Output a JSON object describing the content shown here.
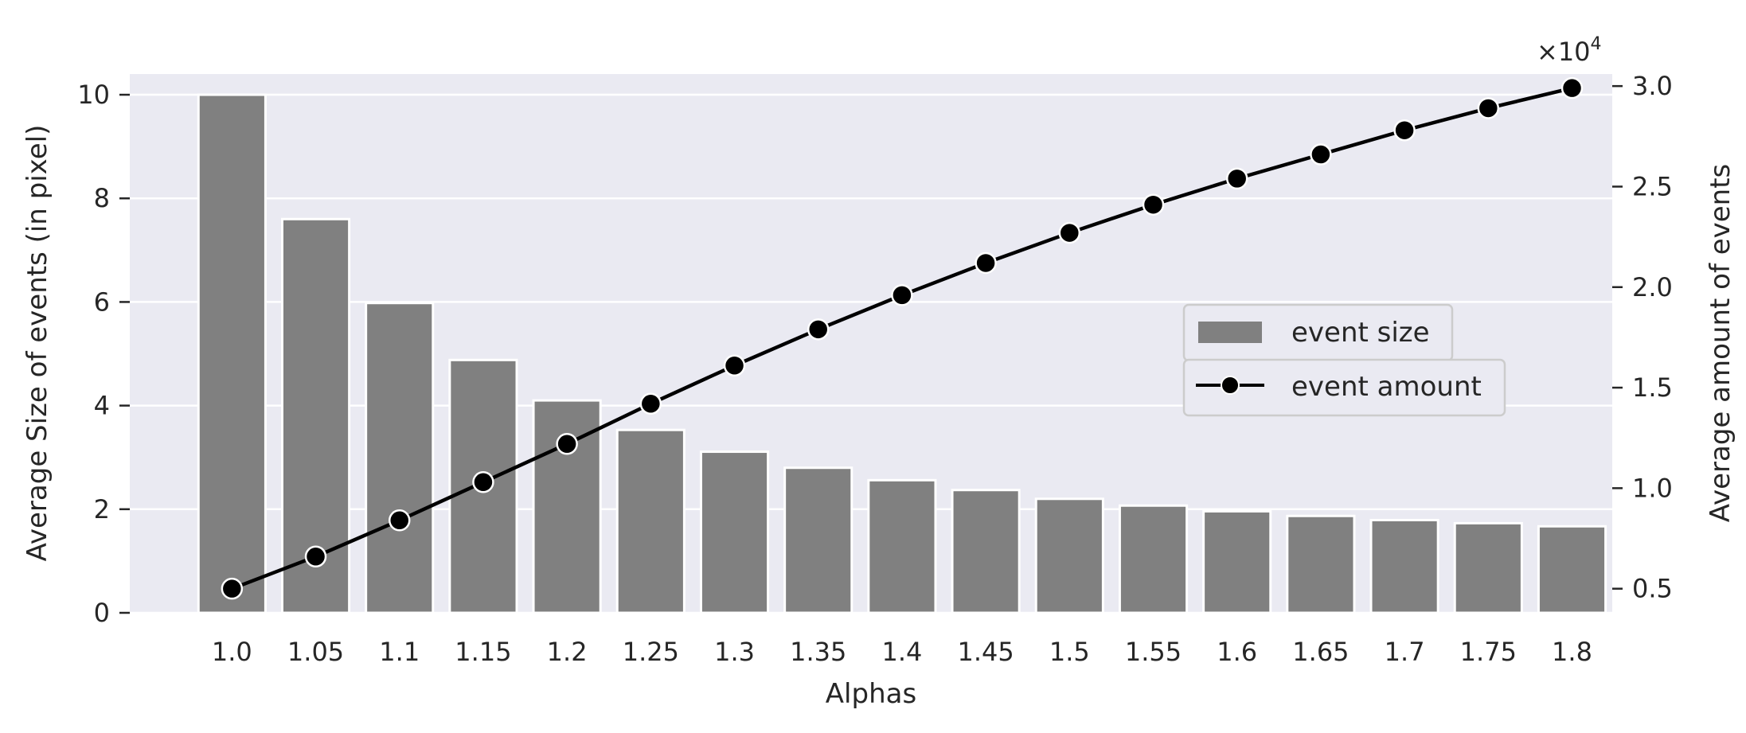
{
  "chart_data": {
    "type": "bar+line",
    "categories": [
      "1.0",
      "1.05",
      "1.1",
      "1.15",
      "1.2",
      "1.25",
      "1.3",
      "1.35",
      "1.4",
      "1.45",
      "1.5",
      "1.55",
      "1.6",
      "1.65",
      "1.7",
      "1.75",
      "1.8"
    ],
    "series": [
      {
        "name": "event size",
        "kind": "bar",
        "axis": "left",
        "values": [
          10.0,
          7.6,
          5.98,
          4.88,
          4.1,
          3.53,
          3.11,
          2.8,
          2.56,
          2.37,
          2.2,
          2.07,
          1.96,
          1.87,
          1.79,
          1.73,
          1.67
        ]
      },
      {
        "name": "event amount",
        "kind": "line",
        "axis": "right",
        "values": [
          5000,
          6600,
          8400,
          10300,
          12200,
          14200,
          16100,
          17900,
          19600,
          21200,
          22700,
          24100,
          25400,
          26600,
          27800,
          28900,
          29900
        ]
      }
    ],
    "xlabel": "Alphas",
    "ylabel": "Average Size of events (in pixel)",
    "y2label": "Average amount of events",
    "ylim": [
      0,
      10.4
    ],
    "y2lim": [
      3800,
      30600
    ],
    "yticks": [
      0,
      2,
      4,
      6,
      8,
      10
    ],
    "y2ticks": [
      0.5,
      1.0,
      1.5,
      2.0,
      2.5,
      3.0
    ],
    "y2_offset_label": "×10",
    "y2_offset_exp": "4",
    "grid": true,
    "legend_position": "center-right",
    "colors": {
      "bar": "#808080",
      "line": "#000000",
      "plot_bg": "#eaeaf2",
      "grid": "#ffffff"
    }
  }
}
